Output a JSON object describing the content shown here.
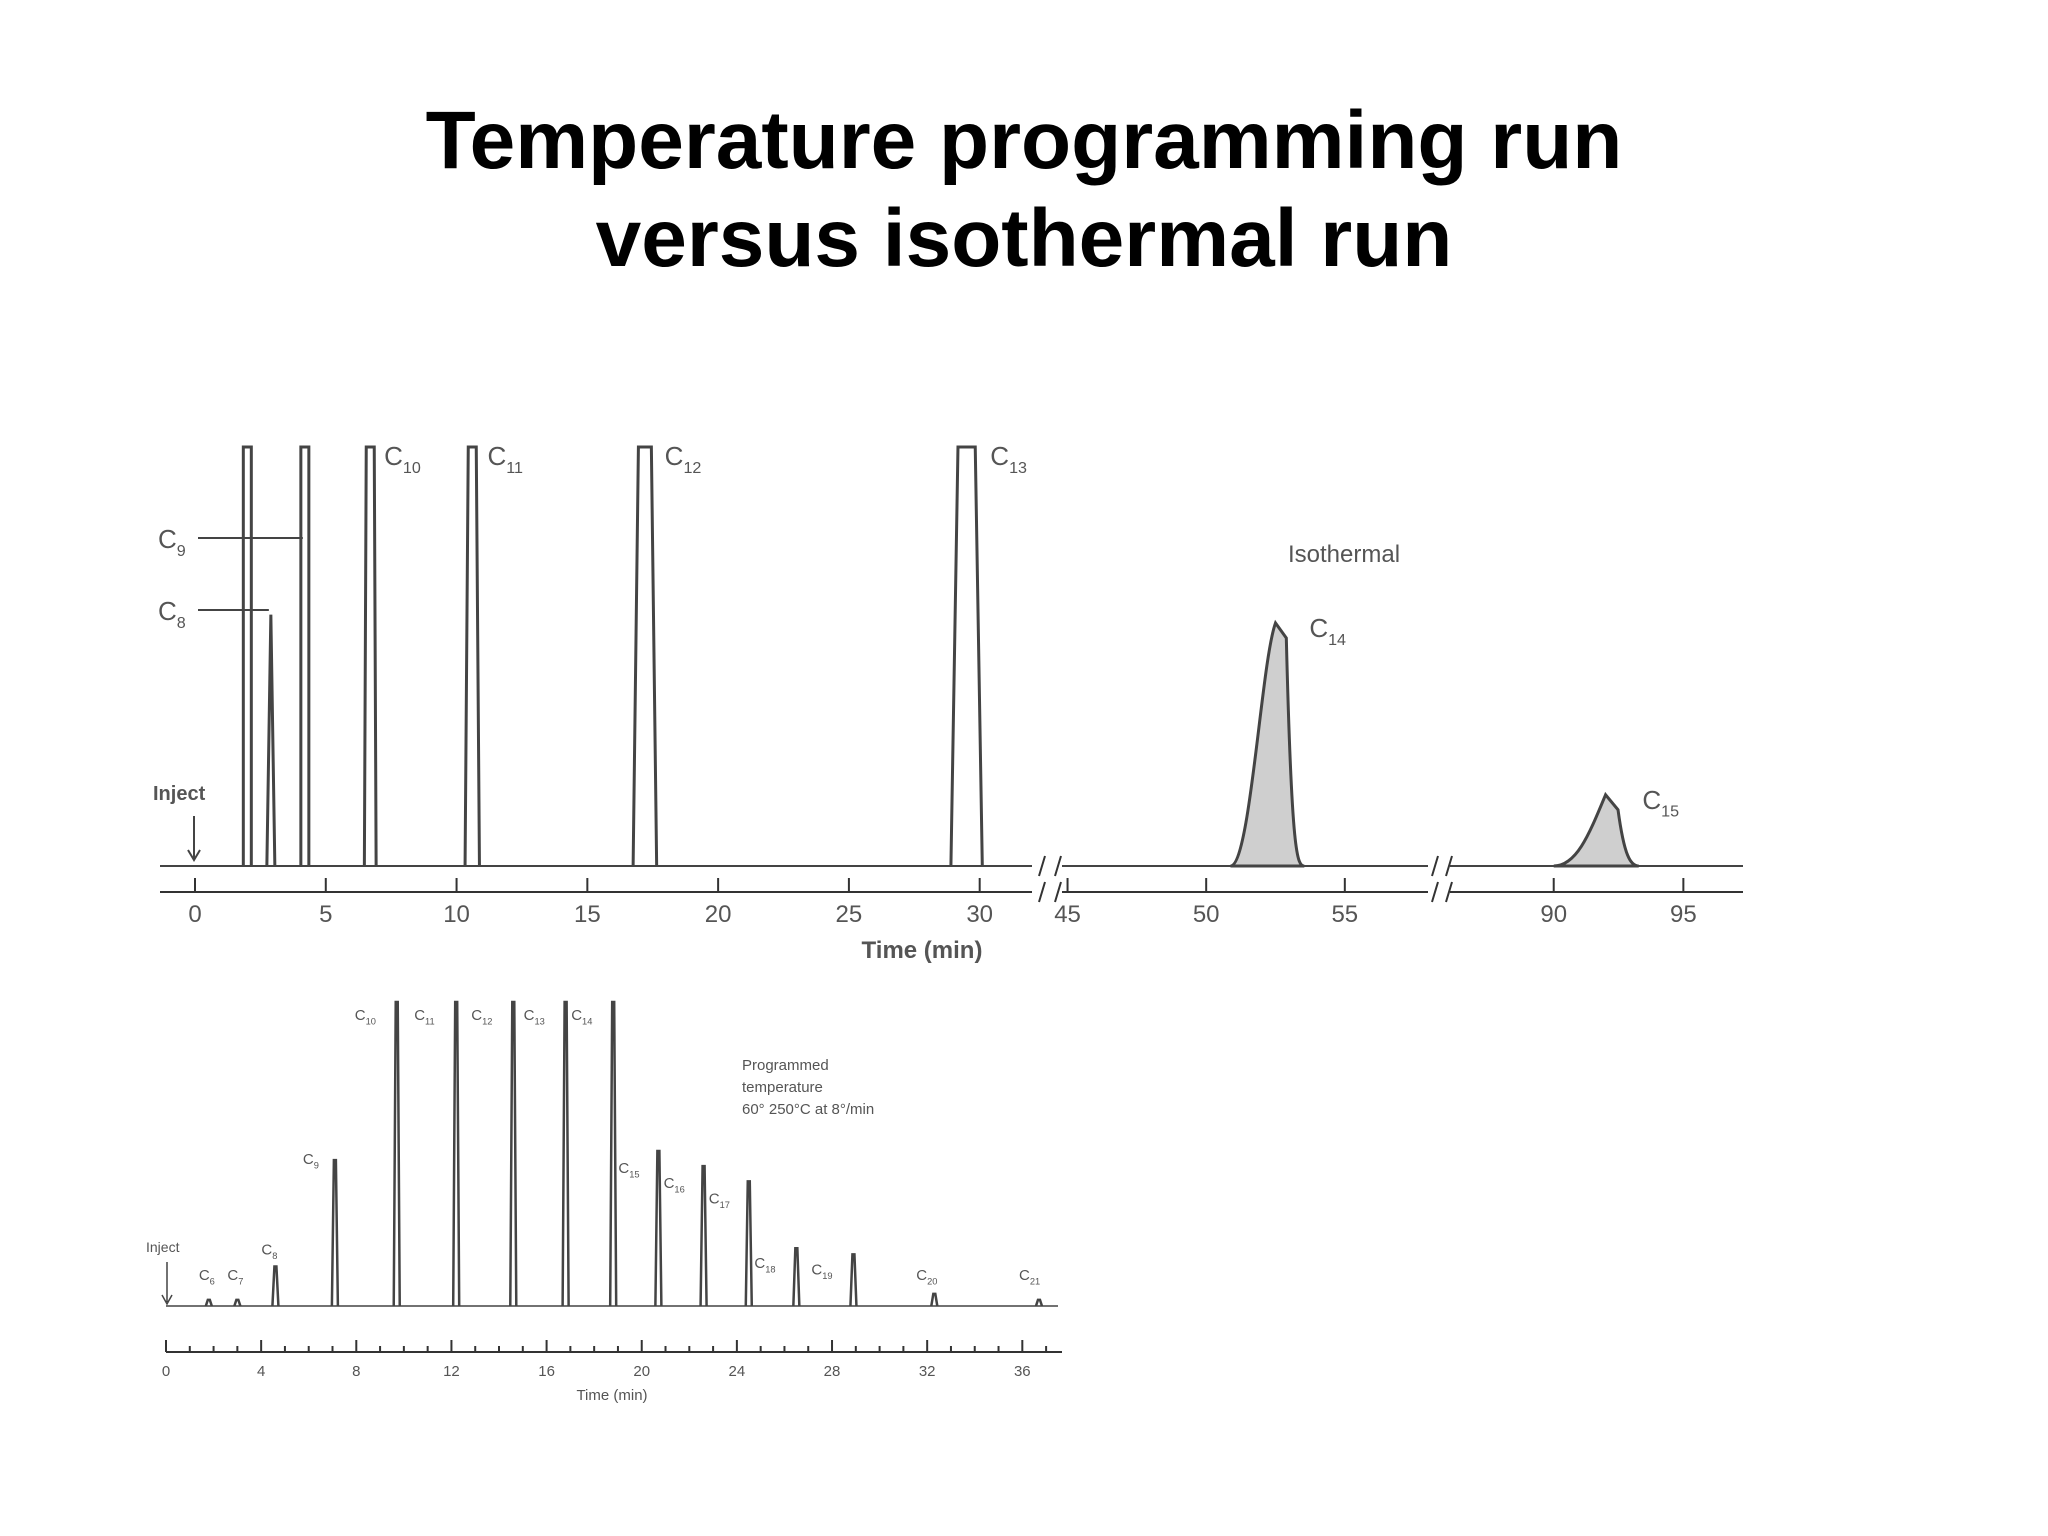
{
  "slide": {
    "title_line1": "Temperature programming run",
    "title_line2": "versus isothermal run"
  },
  "colors": {
    "trace": "#444444",
    "fill": "#cfcfcf",
    "text": "#555555",
    "title": "#000000"
  },
  "chart_data": [
    {
      "type": "line",
      "annotation": "Isothermal",
      "xlabel": "Time (min)",
      "x_segments": [
        {
          "ticks": [
            0,
            5,
            10,
            15,
            20,
            25,
            30
          ],
          "range": [
            0,
            32
          ]
        },
        {
          "ticks": [
            45,
            50,
            55
          ],
          "range": [
            44.8,
            58
          ]
        },
        {
          "ticks": [
            90,
            95
          ],
          "range": [
            86,
            97.3
          ]
        }
      ],
      "inject_label": "Inject",
      "peaks": [
        {
          "label": "",
          "t": 2.0,
          "height": 1.0,
          "width": 0.3,
          "clipped": true
        },
        {
          "label": "C8",
          "t": 2.9,
          "height": 0.6,
          "width": 0.2,
          "clipped": false
        },
        {
          "label": "C9",
          "t": 4.2,
          "height": 1.0,
          "width": 0.25,
          "clipped": true
        },
        {
          "label": "C10",
          "t": 6.7,
          "height": 1.0,
          "width": 0.45,
          "clipped": true
        },
        {
          "label": "C11",
          "t": 10.6,
          "height": 1.0,
          "width": 0.55,
          "clipped": true
        },
        {
          "label": "C12",
          "t": 17.2,
          "height": 1.0,
          "width": 0.9,
          "clipped": true
        },
        {
          "label": "C13",
          "t": 29.5,
          "height": 1.0,
          "width": 1.2,
          "clipped": true
        },
        {
          "label": "C14",
          "t": 52.5,
          "height": 0.58,
          "width": 2.6,
          "clipped": false
        },
        {
          "label": "C15",
          "t": 92.0,
          "height": 0.17,
          "width": 3.2,
          "clipped": false
        }
      ]
    },
    {
      "type": "line",
      "annotation_lines": [
        "Programmed",
        "temperature",
        "60°  250°C at 8°/min"
      ],
      "xlabel": "Time (min)",
      "xticks": [
        0,
        4,
        8,
        12,
        16,
        20,
        24,
        28,
        32,
        36
      ],
      "xlim": [
        0,
        37.5
      ],
      "inject_label": "Inject",
      "peaks": [
        {
          "label": "C6",
          "t": 1.8,
          "height": 0.02
        },
        {
          "label": "C7",
          "t": 3.0,
          "height": 0.02
        },
        {
          "label": "C8",
          "t": 4.6,
          "height": 0.13
        },
        {
          "label": "C9",
          "t": 7.1,
          "height": 0.48
        },
        {
          "label": "C10",
          "t": 9.7,
          "height": 1.0
        },
        {
          "label": "C11",
          "t": 12.2,
          "height": 1.0
        },
        {
          "label": "C12",
          "t": 14.6,
          "height": 1.0
        },
        {
          "label": "C13",
          "t": 16.8,
          "height": 1.0
        },
        {
          "label": "C14",
          "t": 18.8,
          "height": 1.0
        },
        {
          "label": "C15",
          "t": 20.7,
          "height": 0.51
        },
        {
          "label": "C16",
          "t": 22.6,
          "height": 0.46
        },
        {
          "label": "C17",
          "t": 24.5,
          "height": 0.41
        },
        {
          "label": "C18",
          "t": 26.5,
          "height": 0.19
        },
        {
          "label": "C19",
          "t": 28.9,
          "height": 0.17
        },
        {
          "label": "C20",
          "t": 32.3,
          "height": 0.04
        },
        {
          "label": "C21",
          "t": 36.7,
          "height": 0.02
        }
      ]
    }
  ]
}
